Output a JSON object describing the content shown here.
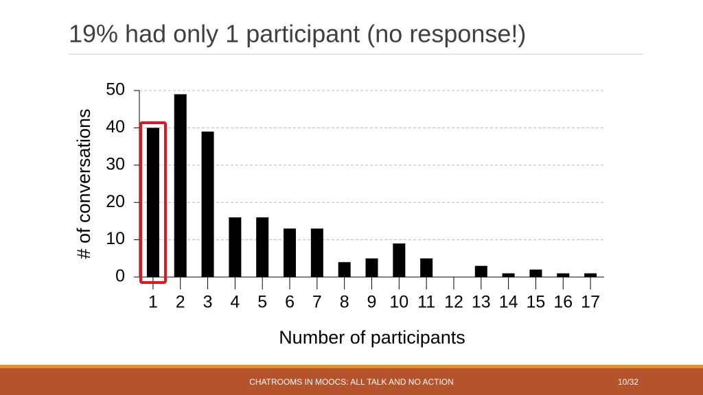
{
  "slide": {
    "title": "19% had only 1 participant (no response!)",
    "footer": "CHATROOMS IN MOOCS: ALL TALK AND NO ACTION",
    "page": "10/32"
  },
  "chart_data": {
    "type": "bar",
    "x_label": "Number of participants",
    "y_label": "# of conversations",
    "categories": [
      "1",
      "2",
      "3",
      "4",
      "5",
      "6",
      "7",
      "8",
      "9",
      "10",
      "11",
      "12",
      "13",
      "14",
      "15",
      "16",
      "17"
    ],
    "values": [
      40,
      49,
      39,
      16,
      16,
      13,
      13,
      4,
      5,
      9,
      5,
      0,
      3,
      1,
      2,
      1,
      1
    ],
    "color": "#000000",
    "ylim": [
      0,
      50
    ],
    "yticks": [
      0,
      10,
      20,
      30,
      40,
      50
    ],
    "grid": true
  }
}
